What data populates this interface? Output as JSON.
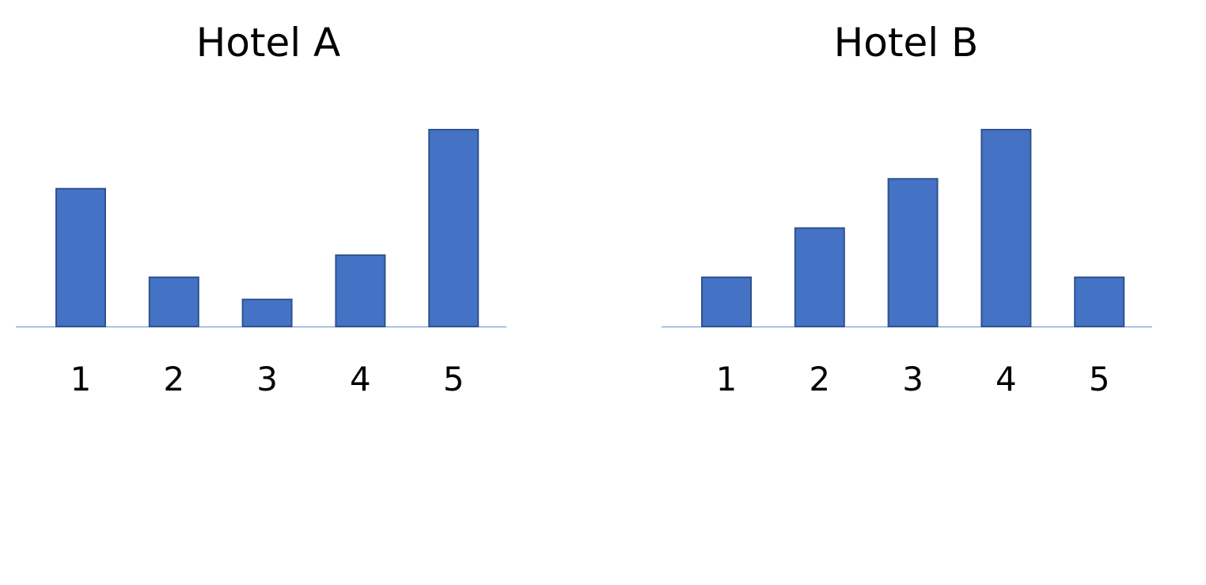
{
  "chart_data": [
    {
      "type": "bar",
      "title": "Hotel A",
      "xlabel": "",
      "ylabel": "",
      "categories": [
        "1",
        "2",
        "3",
        "4",
        "5"
      ],
      "values": [
        28,
        10,
        5.5,
        14.5,
        40
      ],
      "ylim": [
        0,
        40
      ],
      "grid": false,
      "bar_color": "#4472C4",
      "bar_edge_color": "#2F528F",
      "axis_color": "#8FAADC"
    },
    {
      "type": "bar",
      "title": "Hotel B",
      "xlabel": "",
      "ylabel": "",
      "categories": [
        "1",
        "2",
        "3",
        "4",
        "5"
      ],
      "values": [
        10,
        20,
        30,
        40,
        10
      ],
      "ylim": [
        0,
        40
      ],
      "grid": false,
      "bar_color": "#4472C4",
      "bar_edge_color": "#2F528F",
      "axis_color": "#8FAADC"
    }
  ]
}
